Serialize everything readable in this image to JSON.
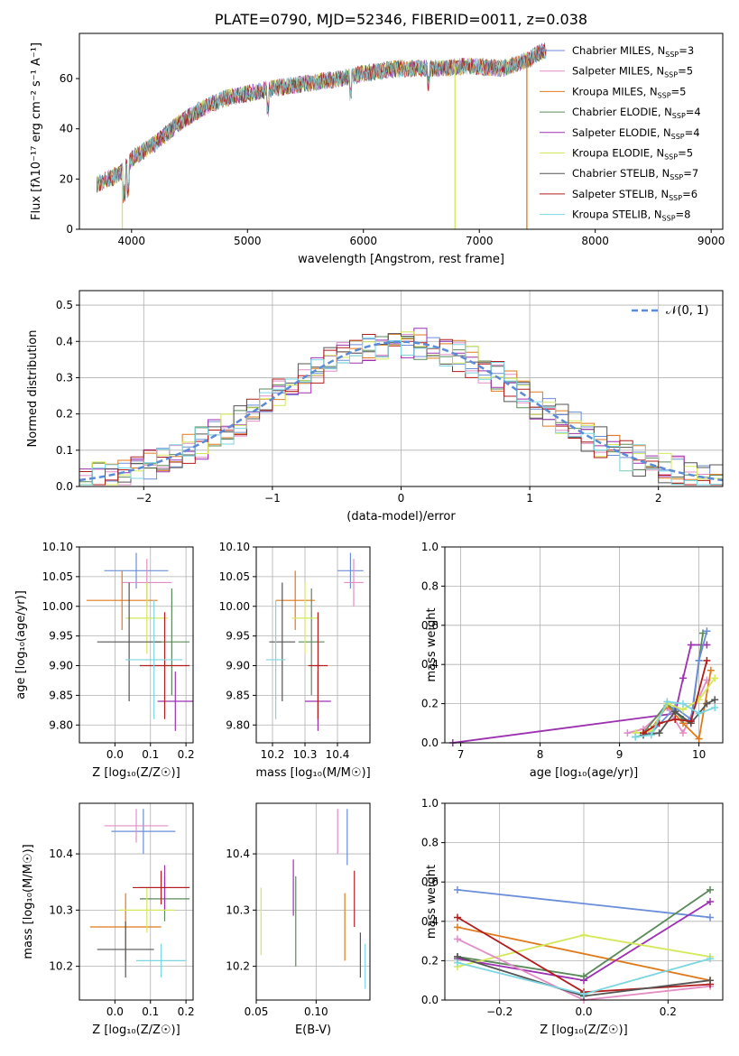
{
  "title": "PLATE=0790, MJD=52346, FIBERID=0011, z=0.038",
  "chart_data": [
    {
      "type": "line",
      "id": "spectrum",
      "xlabel": "wavelength [Angstrom, rest frame]",
      "xlim": [
        3550,
        9100
      ],
      "ylim": [
        0,
        78
      ],
      "xticks": [
        4000,
        5000,
        6000,
        7000,
        8000,
        9000
      ],
      "yticks": [
        0,
        20,
        40,
        60
      ],
      "legend_position": "upper right",
      "series": [
        {
          "name": "Chabrier MILES, N_SSP=3",
          "color": "#6b8ed9"
        },
        {
          "name": "Salpeter MILES, N_SSP=5",
          "color": "#e38cc6"
        },
        {
          "name": "Kroupa MILES, N_SSP=5",
          "color": "#e07a1c"
        },
        {
          "name": "Chabrier ELODIE, N_SSP=4",
          "color": "#5a8a5a"
        },
        {
          "name": "Salpeter ELODIE, N_SSP=4",
          "color": "#9c30b0"
        },
        {
          "name": "Kroupa ELODIE, N_SSP=5",
          "color": "#d4e85a"
        },
        {
          "name": "Chabrier STELIB, N_SSP=7",
          "color": "#555555"
        },
        {
          "name": "Salpeter STELIB, N_SSP=6",
          "color": "#b21c1c"
        },
        {
          "name": "Kroupa STELIB, N_SSP=8",
          "color": "#7ad6e0"
        }
      ],
      "continuum": [
        [
          3700,
          18
        ],
        [
          3900,
          22
        ],
        [
          4000,
          28
        ],
        [
          4200,
          34
        ],
        [
          4400,
          42
        ],
        [
          4600,
          48
        ],
        [
          4800,
          52
        ],
        [
          5000,
          54
        ],
        [
          5200,
          56
        ],
        [
          5500,
          58
        ],
        [
          5800,
          60
        ],
        [
          6000,
          62
        ],
        [
          6300,
          64
        ],
        [
          6600,
          64
        ],
        [
          6900,
          65
        ],
        [
          7200,
          64
        ],
        [
          7450,
          68
        ],
        [
          7500,
          70
        ],
        [
          7600,
          72
        ]
      ],
      "drops": [
        [
          3920,
          "#d4e85a"
        ],
        [
          6790,
          "#d4e85a"
        ],
        [
          7410,
          "#e07a1c"
        ]
      ]
    },
    {
      "type": "histogram",
      "id": "residuals",
      "xlabel": "(data-model)/error",
      "ylabel": "Normed distribution",
      "xlim": [
        -2.5,
        2.5
      ],
      "ylim": [
        0,
        0.54
      ],
      "xticks": [
        -2,
        -1,
        0,
        1,
        2
      ],
      "yticks": [
        0.0,
        0.1,
        0.2,
        0.3,
        0.4,
        0.5
      ],
      "legend": "N(0,1)",
      "gaussian_color": "#5b8bd6"
    },
    {
      "type": "scatter",
      "id": "age-vs-z",
      "xlabel": "Z [log10(Z/Zsun)]",
      "ylabel": "age [log10(age/yr)]",
      "xlim": [
        -0.1,
        0.22
      ],
      "ylim": [
        9.77,
        10.1
      ],
      "xticks": [
        0.0,
        0.1,
        0.2
      ],
      "yticks": [
        9.8,
        9.85,
        9.9,
        9.95,
        10.0,
        10.05,
        10.1
      ],
      "points": [
        {
          "x": 0.06,
          "y": 10.06,
          "xerr": 0.09,
          "yerr": 0.03,
          "color": "#6b8ed9"
        },
        {
          "x": 0.09,
          "y": 10.04,
          "xerr": 0.07,
          "yerr": 0.04,
          "color": "#e38cc6"
        },
        {
          "x": 0.02,
          "y": 10.01,
          "xerr": 0.1,
          "yerr": 0.05,
          "color": "#e07a1c"
        },
        {
          "x": 0.16,
          "y": 9.94,
          "xerr": 0.05,
          "yerr": 0.09,
          "color": "#5a8a5a"
        },
        {
          "x": 0.17,
          "y": 9.84,
          "xerr": 0.05,
          "yerr": 0.05,
          "color": "#9c30b0"
        },
        {
          "x": 0.09,
          "y": 9.98,
          "xerr": 0.06,
          "yerr": 0.06,
          "color": "#d4e85a"
        },
        {
          "x": 0.04,
          "y": 9.94,
          "xerr": 0.09,
          "yerr": 0.1,
          "color": "#555555"
        },
        {
          "x": 0.14,
          "y": 9.9,
          "xerr": 0.07,
          "yerr": 0.09,
          "color": "#b21c1c"
        },
        {
          "x": 0.11,
          "y": 9.91,
          "xerr": 0.08,
          "yerr": 0.1,
          "color": "#7ad6e0"
        }
      ]
    },
    {
      "type": "scatter",
      "id": "age-vs-mass",
      "xlabel": "mass [log10(M/Msun)]",
      "xlim": [
        10.15,
        10.5
      ],
      "ylim": [
        9.77,
        10.1
      ],
      "xticks": [
        10.2,
        10.3,
        10.4
      ],
      "yticks": [
        9.8,
        9.85,
        9.9,
        9.95,
        10.0,
        10.05,
        10.1
      ],
      "points": [
        {
          "x": 10.44,
          "y": 10.06,
          "xerr": 0.04,
          "yerr": 0.03,
          "color": "#6b8ed9"
        },
        {
          "x": 10.45,
          "y": 10.04,
          "xerr": 0.03,
          "yerr": 0.04,
          "color": "#e38cc6"
        },
        {
          "x": 10.27,
          "y": 10.01,
          "xerr": 0.06,
          "yerr": 0.05,
          "color": "#e07a1c"
        },
        {
          "x": 10.32,
          "y": 9.94,
          "xerr": 0.04,
          "yerr": 0.09,
          "color": "#5a8a5a"
        },
        {
          "x": 10.34,
          "y": 9.84,
          "xerr": 0.04,
          "yerr": 0.05,
          "color": "#9c30b0"
        },
        {
          "x": 10.3,
          "y": 9.98,
          "xerr": 0.04,
          "yerr": 0.06,
          "color": "#d4e85a"
        },
        {
          "x": 10.23,
          "y": 9.94,
          "xerr": 0.04,
          "yerr": 0.1,
          "color": "#555555"
        },
        {
          "x": 10.34,
          "y": 9.9,
          "xerr": 0.03,
          "yerr": 0.09,
          "color": "#b21c1c"
        },
        {
          "x": 10.21,
          "y": 9.91,
          "xerr": 0.03,
          "yerr": 0.1,
          "color": "#7ad6e0"
        }
      ]
    },
    {
      "type": "line",
      "id": "weight-vs-age",
      "xlabel": "age [log10(age/yr)]",
      "ylabel": "mass weight",
      "xlim": [
        6.8,
        10.3
      ],
      "ylim": [
        0,
        1.0
      ],
      "xticks": [
        7,
        8,
        9,
        10
      ],
      "yticks": [
        0.0,
        0.2,
        0.4,
        0.6,
        0.8,
        1.0
      ],
      "series": [
        {
          "color": "#9c30b0",
          "x": [
            6.9,
            9.7,
            9.8,
            9.9,
            10.1
          ],
          "y": [
            0.0,
            0.15,
            0.33,
            0.5,
            0.5
          ]
        },
        {
          "color": "#e38cc6",
          "x": [
            9.1,
            9.3,
            9.6,
            9.8,
            10.1
          ],
          "y": [
            0.05,
            0.07,
            0.18,
            0.05,
            0.32
          ]
        },
        {
          "color": "#e07a1c",
          "x": [
            9.4,
            9.6,
            9.8,
            10.0,
            10.15
          ],
          "y": [
            0.07,
            0.19,
            0.1,
            0.02,
            0.37
          ]
        },
        {
          "color": "#5a8a5a",
          "x": [
            9.3,
            9.6,
            9.8,
            9.9,
            10.0,
            10.05
          ],
          "y": [
            0.05,
            0.2,
            0.12,
            0.1,
            0.42,
            0.56
          ]
        },
        {
          "color": "#6b8ed9",
          "x": [
            9.2,
            9.4,
            9.7,
            9.9,
            10.0,
            10.1
          ],
          "y": [
            0.03,
            0.05,
            0.18,
            0.12,
            0.42,
            0.57
          ]
        },
        {
          "color": "#d4e85a",
          "x": [
            9.2,
            9.4,
            9.6,
            9.8,
            10.0,
            10.2
          ],
          "y": [
            0.05,
            0.06,
            0.2,
            0.17,
            0.22,
            0.33
          ]
        },
        {
          "color": "#555555",
          "x": [
            9.3,
            9.5,
            9.7,
            9.9,
            10.1,
            10.2
          ],
          "y": [
            0.04,
            0.05,
            0.16,
            0.1,
            0.2,
            0.22
          ]
        },
        {
          "color": "#b21c1c",
          "x": [
            9.3,
            9.5,
            9.7,
            9.9,
            10.1
          ],
          "y": [
            0.05,
            0.1,
            0.12,
            0.11,
            0.42
          ]
        },
        {
          "color": "#7ad6e0",
          "x": [
            9.2,
            9.4,
            9.6,
            9.8,
            10.0,
            10.2
          ],
          "y": [
            0.03,
            0.04,
            0.21,
            0.2,
            0.15,
            0.18
          ]
        }
      ]
    },
    {
      "type": "scatter",
      "id": "mass-vs-z",
      "xlabel": "Z [log10(Z/Zsun)]",
      "ylabel": "mass [log10(M/Msun)]",
      "xlim": [
        -0.1,
        0.22
      ],
      "ylim": [
        10.14,
        10.49
      ],
      "xticks": [
        0.0,
        0.1,
        0.2
      ],
      "yticks": [
        10.2,
        10.3,
        10.4
      ],
      "points": [
        {
          "x": 0.08,
          "y": 10.44,
          "xerr": 0.09,
          "yerr": 0.04,
          "color": "#6b8ed9"
        },
        {
          "x": 0.06,
          "y": 10.45,
          "xerr": 0.09,
          "yerr": 0.03,
          "color": "#e38cc6"
        },
        {
          "x": 0.03,
          "y": 10.27,
          "xerr": 0.1,
          "yerr": 0.06,
          "color": "#e07a1c"
        },
        {
          "x": 0.14,
          "y": 10.32,
          "xerr": 0.07,
          "yerr": 0.04,
          "color": "#5a8a5a"
        },
        {
          "x": 0.14,
          "y": 10.34,
          "xerr": 0.07,
          "yerr": 0.04,
          "color": "#9c30b0"
        },
        {
          "x": 0.09,
          "y": 10.3,
          "xerr": 0.08,
          "yerr": 0.04,
          "color": "#d4e85a"
        },
        {
          "x": 0.03,
          "y": 10.23,
          "xerr": 0.08,
          "yerr": 0.05,
          "color": "#555555"
        },
        {
          "x": 0.13,
          "y": 10.34,
          "xerr": 0.08,
          "yerr": 0.03,
          "color": "#b21c1c"
        },
        {
          "x": 0.13,
          "y": 10.21,
          "xerr": 0.07,
          "yerr": 0.03,
          "color": "#7ad6e0"
        }
      ]
    },
    {
      "type": "errorbar",
      "id": "mass-vs-ebv",
      "xlabel": "E(B-V)",
      "xlim": [
        0.05,
        0.145
      ],
      "ylim": [
        10.14,
        10.49
      ],
      "xticks": [
        0.05,
        0.1
      ],
      "yticks": [
        10.2,
        10.3,
        10.4
      ],
      "points": [
        {
          "x": 0.126,
          "y": 10.43,
          "yerr": 0.05,
          "color": "#6b8ed9"
        },
        {
          "x": 0.118,
          "y": 10.44,
          "yerr": 0.04,
          "color": "#e38cc6"
        },
        {
          "x": 0.124,
          "y": 10.27,
          "yerr": 0.06,
          "color": "#e07a1c"
        },
        {
          "x": 0.083,
          "y": 10.28,
          "yerr": 0.08,
          "color": "#5a8a5a"
        },
        {
          "x": 0.081,
          "y": 10.34,
          "yerr": 0.05,
          "color": "#9c30b0"
        },
        {
          "x": 0.054,
          "y": 10.28,
          "yerr": 0.06,
          "color": "#d4e85a"
        },
        {
          "x": 0.137,
          "y": 10.22,
          "yerr": 0.04,
          "color": "#555555"
        },
        {
          "x": 0.132,
          "y": 10.32,
          "yerr": 0.05,
          "color": "#b21c1c"
        },
        {
          "x": 0.141,
          "y": 10.2,
          "yerr": 0.04,
          "color": "#7ad6e0"
        }
      ]
    },
    {
      "type": "line",
      "id": "weight-vs-z",
      "xlabel": "Z [log10(Z/Zsun)]",
      "ylabel": "mass weight",
      "xlim": [
        -0.33,
        0.33
      ],
      "ylim": [
        0,
        1.0
      ],
      "xticks": [
        -0.2,
        0.0,
        0.2
      ],
      "yticks": [
        0.0,
        0.2,
        0.4,
        0.6,
        0.8,
        1.0
      ],
      "series": [
        {
          "color": "#6b8ed9",
          "x": [
            -0.3,
            0.3
          ],
          "y": [
            0.56,
            0.42
          ]
        },
        {
          "color": "#e07a1c",
          "x": [
            -0.3,
            0.3
          ],
          "y": [
            0.37,
            0.1
          ]
        },
        {
          "color": "#9c30b0",
          "x": [
            -0.3,
            0.0,
            0.3
          ],
          "y": [
            0.21,
            0.1,
            0.5
          ]
        },
        {
          "color": "#5a8a5a",
          "x": [
            -0.3,
            0.0,
            0.3
          ],
          "y": [
            0.22,
            0.12,
            0.56
          ]
        },
        {
          "color": "#d4e85a",
          "x": [
            -0.3,
            0.0,
            0.3
          ],
          "y": [
            0.17,
            0.33,
            0.22
          ]
        },
        {
          "color": "#e38cc6",
          "x": [
            -0.3,
            0.0,
            0.3
          ],
          "y": [
            0.31,
            0.0,
            0.07
          ]
        },
        {
          "color": "#b21c1c",
          "x": [
            -0.3,
            0.0,
            0.3
          ],
          "y": [
            0.42,
            0.04,
            0.08
          ]
        },
        {
          "color": "#555555",
          "x": [
            -0.3,
            0.0,
            0.3
          ],
          "y": [
            0.22,
            0.02,
            0.1
          ]
        },
        {
          "color": "#7ad6e0",
          "x": [
            -0.3,
            0.0,
            0.3
          ],
          "y": [
            0.19,
            0.03,
            0.21
          ]
        }
      ]
    }
  ],
  "labels": {
    "spectrum_ylabel": "Flux [fλ10⁻¹⁷ erg cm⁻² s⁻¹ A⁻¹]",
    "legend_gaussian": "𝒩(0, 1)"
  }
}
